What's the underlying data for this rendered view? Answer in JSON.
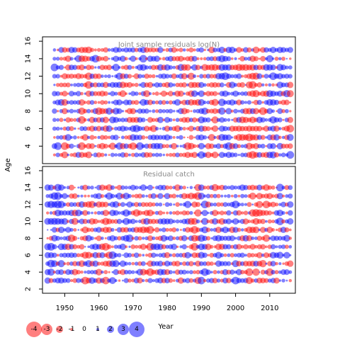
{
  "colors": {
    "positive": "#0000ff",
    "negative": "#ff0000",
    "box": "#000000",
    "panel_title": "#8a8a8a"
  },
  "chart_data": {
    "type": "scatter",
    "subtype": "bubble",
    "ylabel": "Age",
    "xlabel": "Year",
    "xlim": [
      1943.5,
      2017.5
    ],
    "xticks": [
      1950,
      1960,
      1970,
      1980,
      1990,
      2000,
      2010
    ],
    "legend": {
      "position": "bottom-left",
      "values": [
        -4,
        -3,
        -2,
        -1,
        0,
        1,
        2,
        3,
        4
      ],
      "labels": [
        "-4",
        "-3",
        "-2",
        "-1",
        "0",
        "1",
        "2",
        "3",
        "4"
      ]
    },
    "panels": [
      {
        "title": "Joint sample residuals log(N)",
        "ylim": [
          2,
          16.5
        ],
        "yticks": [
          4,
          6,
          8,
          10,
          12,
          14,
          16
        ],
        "grid": false,
        "years": [
          1947,
          2016
        ],
        "ages": [
          3,
          15
        ],
        "red_years": [
          1950,
          1955,
          1956,
          1957,
          1960,
          1961,
          1962,
          1985,
          1986,
          1987,
          1993,
          1994,
          2002,
          2003,
          2004,
          2005,
          2006,
          2008
        ],
        "blue_years": [
          1947,
          1948,
          1965,
          1966,
          1972,
          1973,
          1978,
          1990,
          1996,
          1997,
          1998,
          2010,
          2011,
          2013
        ],
        "seed": 11
      },
      {
        "title": "Residual catch",
        "ylim": [
          1.5,
          16.5
        ],
        "yticks": [
          2,
          4,
          6,
          8,
          10,
          12,
          14,
          16
        ],
        "grid": false,
        "years": [
          1945,
          2016
        ],
        "ages": [
          3,
          14
        ],
        "red_years": [
          1956,
          1962,
          1975,
          1988,
          1989,
          2004,
          2005,
          2006,
          2007,
          2008,
          2009,
          2010
        ],
        "blue_years": [
          1945,
          1946,
          1947,
          1948,
          1949,
          1950,
          1964,
          1965,
          1968,
          1969,
          1978,
          1990,
          1991,
          1997,
          2000,
          2013,
          2014
        ],
        "seed": 29
      }
    ]
  }
}
